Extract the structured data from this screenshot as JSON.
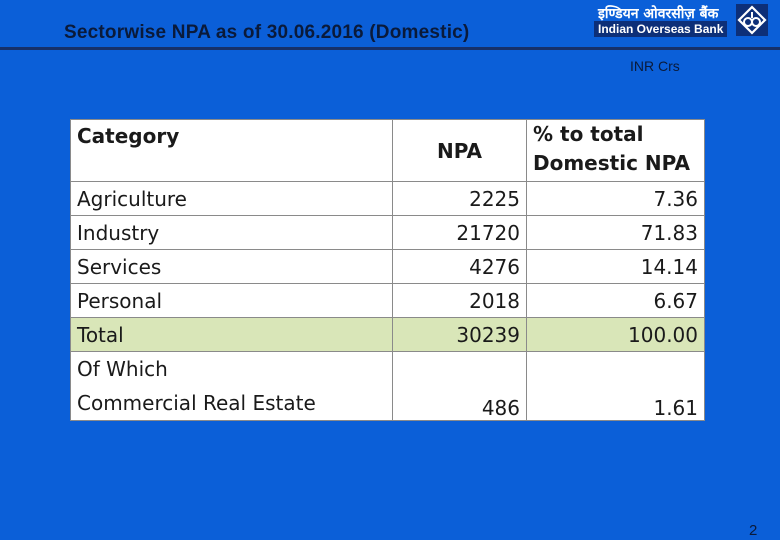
{
  "header": {
    "title": "Sectorwise NPA as of 30.06.2016 (Domestic)",
    "logo_hindi": "इण्डियन ओवरसीज़ बैंक",
    "logo_english": "Indian Overseas Bank"
  },
  "unit_label": "INR Crs",
  "table": {
    "headers": [
      "Category",
      "NPA",
      "% to total Domestic NPA"
    ],
    "rows": [
      {
        "category": "Agriculture",
        "npa": "2225",
        "pct": "7.36"
      },
      {
        "category": "Industry",
        "npa": "21720",
        "pct": "71.83"
      },
      {
        "category": "Services",
        "npa": "4276",
        "pct": "14.14"
      },
      {
        "category": "Personal",
        "npa": "2018",
        "pct": "6.67"
      },
      {
        "category": "Total",
        "npa": "30239",
        "pct": "100.00"
      }
    ],
    "of_which": {
      "label": "Of Which",
      "category": "Commercial Real Estate",
      "npa": "486",
      "pct": "1.61"
    }
  },
  "page_number": "2",
  "colors": {
    "background": "#0b5fd8",
    "total_row": "#d9e6b8",
    "title_text": "#0a1a3a"
  }
}
